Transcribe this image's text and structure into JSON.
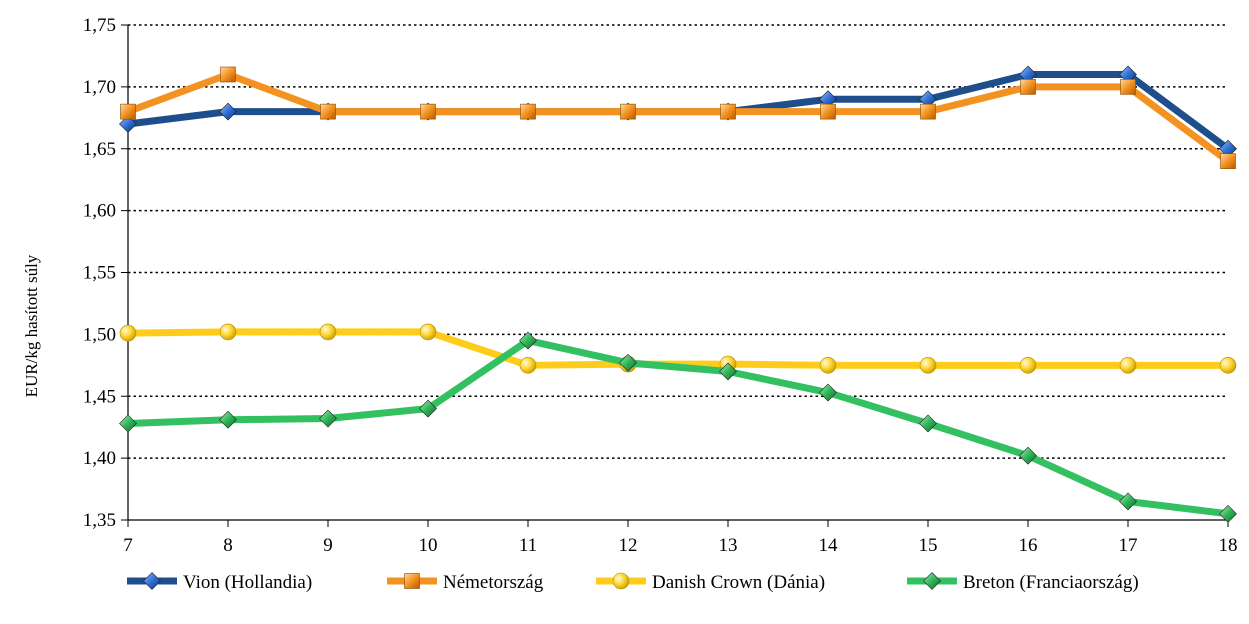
{
  "chart_data": {
    "type": "line",
    "title": "",
    "xlabel": "",
    "ylabel": "EUR/kg hasított súly",
    "x": [
      7,
      8,
      9,
      10,
      11,
      12,
      13,
      14,
      15,
      16,
      17,
      18
    ],
    "ylim": [
      1.35,
      1.75
    ],
    "yticks": [
      "1,35",
      "1,40",
      "1,45",
      "1,50",
      "1,55",
      "1,60",
      "1,65",
      "1,70",
      "1,75"
    ],
    "grid": "horizontal dotted",
    "legend_position": "bottom",
    "series": [
      {
        "name": "Vion (Hollandia)",
        "color": "#1f4e8c",
        "marker": "diamond",
        "values": [
          1.67,
          1.68,
          1.68,
          1.68,
          1.68,
          1.68,
          1.68,
          1.69,
          1.69,
          1.71,
          1.71,
          1.65
        ]
      },
      {
        "name": "Németország",
        "color": "#f39220",
        "marker": "square",
        "values": [
          1.68,
          1.71,
          1.68,
          1.68,
          1.68,
          1.68,
          1.68,
          1.68,
          1.68,
          1.7,
          1.7,
          1.64
        ]
      },
      {
        "name": "Danish Crown (Dánia)",
        "color": "#ffcc1a",
        "marker": "circle",
        "values": [
          1.501,
          1.502,
          1.502,
          1.502,
          1.475,
          1.476,
          1.476,
          1.475,
          1.475,
          1.475,
          1.475,
          1.475
        ]
      },
      {
        "name": "Breton (Franciaország)",
        "color": "#33c060",
        "marker": "diamond",
        "values": [
          1.428,
          1.431,
          1.432,
          1.44,
          1.495,
          1.477,
          1.47,
          1.453,
          1.428,
          1.402,
          1.365,
          1.355
        ]
      }
    ]
  }
}
